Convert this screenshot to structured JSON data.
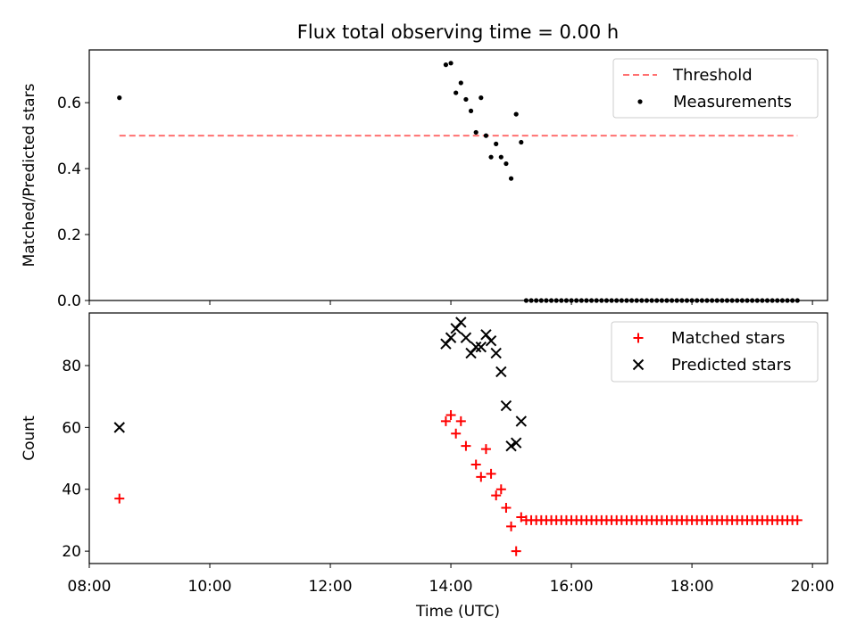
{
  "title": "Flux total observing time = 0.00 h",
  "chart_data": [
    {
      "type": "scatter",
      "panel": "top",
      "ylabel": "Matched/Predicted stars",
      "xlabel": "",
      "xlim": [
        "08:00",
        "20:15"
      ],
      "ylim": [
        0,
        0.76
      ],
      "yticks": [
        "0.0",
        "0.2",
        "0.4",
        "0.6"
      ],
      "legend": "top-right",
      "grid": false,
      "series": [
        {
          "name": "Threshold",
          "kind": "dashed-line",
          "color": "#ff7070",
          "x": [
            "08:30",
            "19:45"
          ],
          "y": [
            0.5,
            0.5
          ]
        },
        {
          "name": "Measurements",
          "kind": "dot",
          "color": "#000000",
          "x": [
            "08:30",
            "13:55",
            "14:00",
            "14:05",
            "14:10",
            "14:15",
            "14:20",
            "14:25",
            "14:30",
            "14:35",
            "14:40",
            "14:45",
            "14:50",
            "14:55",
            "15:00",
            "15:05",
            "15:10",
            "15:15",
            "15:20",
            "15:25",
            "15:30",
            "15:35",
            "15:40",
            "15:45",
            "15:50",
            "15:55",
            "16:00",
            "16:05",
            "16:10",
            "16:15",
            "16:20",
            "16:25",
            "16:30",
            "16:35",
            "16:40",
            "16:45",
            "16:50",
            "16:55",
            "17:00",
            "17:05",
            "17:10",
            "17:15",
            "17:20",
            "17:25",
            "17:30",
            "17:35",
            "17:40",
            "17:45",
            "17:50",
            "17:55",
            "18:00",
            "18:05",
            "18:10",
            "18:15",
            "18:20",
            "18:25",
            "18:30",
            "18:35",
            "18:40",
            "18:45",
            "18:50",
            "18:55",
            "19:00",
            "19:05",
            "19:10",
            "19:15",
            "19:20",
            "19:25",
            "19:30",
            "19:35",
            "19:40",
            "19:45"
          ],
          "y": [
            0.615,
            0.715,
            0.72,
            0.63,
            0.66,
            0.61,
            0.575,
            0.51,
            0.615,
            0.5,
            0.435,
            0.475,
            0.435,
            0.415,
            0.37,
            0.565,
            0.48,
            0,
            0,
            0,
            0,
            0,
            0,
            0,
            0,
            0,
            0,
            0,
            0,
            0,
            0,
            0,
            0,
            0,
            0,
            0,
            0,
            0,
            0,
            0,
            0,
            0,
            0,
            0,
            0,
            0,
            0,
            0,
            0,
            0,
            0,
            0,
            0,
            0,
            0,
            0,
            0,
            0,
            0,
            0,
            0,
            0,
            0,
            0,
            0,
            0,
            0,
            0,
            0,
            0,
            0,
            0
          ]
        }
      ]
    },
    {
      "type": "scatter",
      "panel": "bottom",
      "ylabel": "Count",
      "xlabel": "Time (UTC)",
      "xlim": [
        "08:00",
        "20:15"
      ],
      "ylim": [
        16,
        97
      ],
      "yticks": [
        "20",
        "40",
        "60",
        "80"
      ],
      "xticks": [
        "08:00",
        "10:00",
        "12:00",
        "14:00",
        "16:00",
        "18:00",
        "20:00"
      ],
      "legend": "top-right",
      "grid": false,
      "series": [
        {
          "name": "Matched stars",
          "kind": "plus",
          "color": "#ff0000",
          "x": [
            "08:30",
            "13:55",
            "14:00",
            "14:05",
            "14:10",
            "14:15",
            "14:25",
            "14:30",
            "14:35",
            "14:40",
            "14:45",
            "14:50",
            "14:55",
            "15:00",
            "15:05",
            "15:10",
            "15:15",
            "15:20",
            "15:25",
            "15:30",
            "15:35",
            "15:40",
            "15:45",
            "15:50",
            "15:55",
            "16:00",
            "16:05",
            "16:10",
            "16:15",
            "16:20",
            "16:25",
            "16:30",
            "16:35",
            "16:40",
            "16:45",
            "16:50",
            "16:55",
            "17:00",
            "17:05",
            "17:10",
            "17:15",
            "17:20",
            "17:25",
            "17:30",
            "17:35",
            "17:40",
            "17:45",
            "17:50",
            "17:55",
            "18:00",
            "18:05",
            "18:10",
            "18:15",
            "18:20",
            "18:25",
            "18:30",
            "18:35",
            "18:40",
            "18:45",
            "18:50",
            "18:55",
            "19:00",
            "19:05",
            "19:10",
            "19:15",
            "19:20",
            "19:25",
            "19:30",
            "19:35",
            "19:40",
            "19:45"
          ],
          "y": [
            37,
            62,
            64,
            58,
            62,
            54,
            48,
            44,
            53,
            45,
            38,
            40,
            34,
            28,
            20,
            31,
            30,
            30,
            30,
            30,
            30,
            30,
            30,
            30,
            30,
            30,
            30,
            30,
            30,
            30,
            30,
            30,
            30,
            30,
            30,
            30,
            30,
            30,
            30,
            30,
            30,
            30,
            30,
            30,
            30,
            30,
            30,
            30,
            30,
            30,
            30,
            30,
            30,
            30,
            30,
            30,
            30,
            30,
            30,
            30,
            30,
            30,
            30,
            30,
            30,
            30,
            30,
            30,
            30,
            30,
            30
          ]
        },
        {
          "name": "Predicted stars",
          "kind": "x",
          "color": "#000000",
          "x": [
            "08:30",
            "13:55",
            "14:00",
            "14:05",
            "14:10",
            "14:15",
            "14:20",
            "14:25",
            "14:30",
            "14:35",
            "14:40",
            "14:45",
            "14:50",
            "14:55",
            "15:00",
            "15:05",
            "15:10"
          ],
          "y": [
            60,
            87,
            89,
            92,
            94,
            89,
            84,
            86,
            86,
            90,
            88,
            84,
            78,
            67,
            54,
            55,
            62
          ]
        }
      ]
    }
  ]
}
